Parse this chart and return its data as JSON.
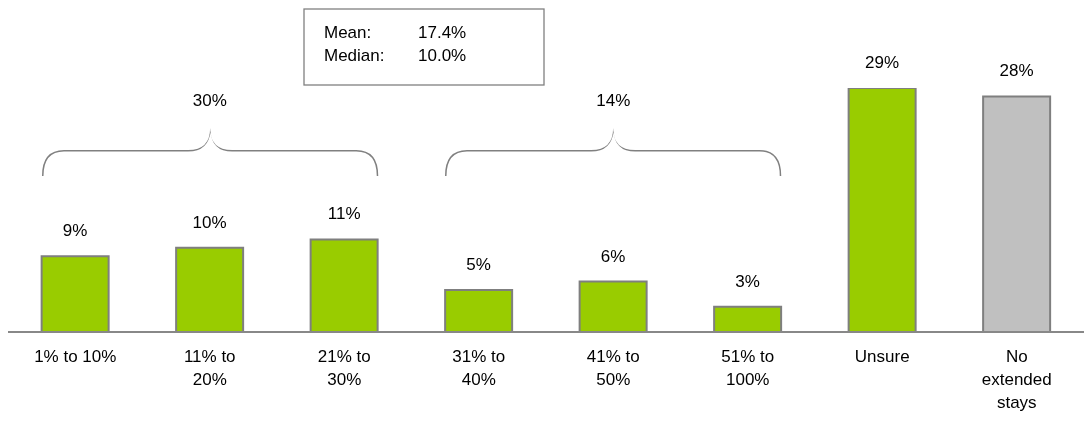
{
  "chart_data": {
    "type": "bar",
    "categories": [
      "1% to 10%",
      "11% to 20%",
      "21% to 30%",
      "31% to 40%",
      "41% to 50%",
      "51% to 100%",
      "Unsure",
      "No extended stays"
    ],
    "values": [
      9,
      10,
      11,
      5,
      6,
      3,
      29,
      28
    ],
    "colors": [
      "#99cc00",
      "#99cc00",
      "#99cc00",
      "#99cc00",
      "#99cc00",
      "#99cc00",
      "#99cc00",
      "#c0c0c0"
    ],
    "value_labels": [
      "9%",
      "10%",
      "11%",
      "5%",
      "6%",
      "3%",
      "29%",
      "28%"
    ],
    "annotations": [
      "Mean:",
      "17.4%",
      "Median:",
      "10.0%",
      "30%",
      "14%"
    ]
  }
}
